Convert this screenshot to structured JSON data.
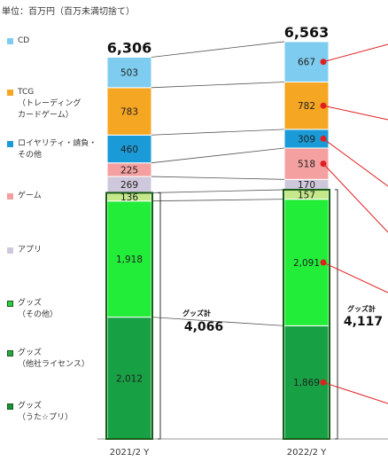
{
  "unit_label": "単位：百万円（百万未満切捨て）",
  "legend": [
    {
      "label": "CD",
      "color": "#7ecdf0",
      "outlined": false
    },
    {
      "label": "TCG\n（トレーディング\nカードゲーム）",
      "color": "#f5a623",
      "outlined": false
    },
    {
      "label": "ロイヤリティ・請負・\nその他",
      "color": "#1a9bd7",
      "outlined": false
    },
    {
      "label": "ゲーム",
      "color": "#f4a0a0",
      "outlined": false
    },
    {
      "label": "アプリ",
      "color": "#cfc8dc",
      "outlined": false
    },
    {
      "label": "グッズ\n（その他）",
      "color": "#2ecc40",
      "outlined": true
    },
    {
      "label": "グッズ\n（他社ライセンス）",
      "color": "#28a745",
      "outlined": true
    },
    {
      "label": "グッズ\n（うた☆プリ）",
      "color": "#15943d",
      "outlined": true
    }
  ],
  "chart_data": {
    "type": "bar",
    "stacked": true,
    "categories": [
      "2021/2 Y",
      "2022/2 Y"
    ],
    "series": [
      {
        "name": "グッズ（うた☆プリ）",
        "color": "#17a144",
        "values": [
          2012,
          1869
        ]
      },
      {
        "name": "グッズ（その他）",
        "color": "#22ee3a",
        "values": [
          1918,
          2091
        ]
      },
      {
        "name": "グッズ（他社ライセンス）",
        "color": "#c4e88a",
        "values": [
          136,
          157
        ]
      },
      {
        "name": "アプリ",
        "color": "#cfc8dc",
        "values": [
          269,
          170
        ]
      },
      {
        "name": "ゲーム",
        "color": "#f4a0a0",
        "values": [
          225,
          518
        ]
      },
      {
        "name": "ロイヤリティ・請負・その他",
        "color": "#1a9bd7",
        "values": [
          460,
          309
        ]
      },
      {
        "name": "TCG（トレーディングカードゲーム）",
        "color": "#f5a623",
        "values": [
          783,
          782
        ]
      },
      {
        "name": "CD",
        "color": "#7ecdf0",
        "values": [
          503,
          667
        ]
      }
    ],
    "totals": [
      "6,306",
      "6,563"
    ],
    "goods_totals": [
      {
        "title": "グッズ計",
        "value": "4,066"
      },
      {
        "title": "グッズ計",
        "value": "4,117"
      }
    ]
  }
}
